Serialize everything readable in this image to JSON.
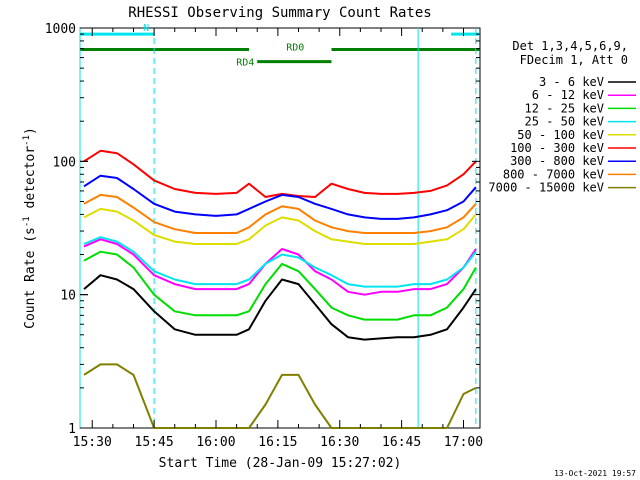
{
  "chart_data": {
    "type": "line",
    "title": "RHESSI Observing Summary Count Rates",
    "xlabel": "Start Time (28-Jan-09 15:27:02)",
    "ylabel": "Count Rate (s⁻¹ detector⁻¹)",
    "ylabel_parts": [
      "Count Rate (s",
      "-1",
      " detector",
      "-1",
      ")"
    ],
    "y_scale": "log",
    "ylim": [
      1,
      1000
    ],
    "y_ticks": [
      1,
      10,
      100,
      1000
    ],
    "y_tick_labels": [
      "1",
      "10",
      "100",
      "1000"
    ],
    "xlim": [
      "15:27:02",
      "17:04:00"
    ],
    "x_ticks": [
      "15:30",
      "15:45",
      "16:00",
      "16:15",
      "16:30",
      "16:45",
      "17:00"
    ],
    "legend_header": [
      "Det 1,3,4,5,6,9,",
      "FDecim 1, Att 0"
    ],
    "legend_placement": "right",
    "footer": "13-Oct-2021 19:57",
    "flags": [
      {
        "label": "N",
        "color": "#00e5ee",
        "segments": [
          [
            "15:27:02",
            "15:45:00"
          ],
          [
            "16:57:00",
            "17:04:00"
          ]
        ],
        "level": 900
      },
      {
        "label": "RD0",
        "color": "#007f00",
        "segments": [
          [
            "15:27:02",
            "16:08:00"
          ],
          [
            "16:28:00",
            "17:04:00"
          ]
        ],
        "level": 690
      },
      {
        "label": "RD4",
        "color": "#007f00",
        "segments": [
          [
            "16:10:00",
            "16:28:00"
          ]
        ],
        "level": 560
      }
    ],
    "markers": [
      {
        "time": "15:27:02",
        "style": "solid"
      },
      {
        "time": "15:45:00",
        "style": "dashed"
      },
      {
        "time": "16:49:00",
        "style": "solid"
      },
      {
        "time": "17:03:00",
        "style": "dashed"
      }
    ],
    "series": [
      {
        "name": "3 - 6 keV",
        "color": "#000000",
        "x": [
          "15:28",
          "15:32",
          "15:36",
          "15:40",
          "15:45",
          "15:50",
          "15:55",
          "16:00",
          "16:05",
          "16:08",
          "16:12",
          "16:16",
          "16:20",
          "16:24",
          "16:28",
          "16:32",
          "16:36",
          "16:40",
          "16:44",
          "16:48",
          "16:52",
          "16:56",
          "17:00",
          "17:03"
        ],
        "values": [
          11,
          14,
          13,
          11,
          7.5,
          5.5,
          5,
          5,
          5,
          5.5,
          9,
          13,
          12,
          8.5,
          6,
          4.8,
          4.6,
          4.7,
          4.8,
          4.8,
          5,
          5.5,
          8,
          11
        ]
      },
      {
        "name": "6 - 12 keV",
        "color": "#ff00ff",
        "x": [
          "15:28",
          "15:32",
          "15:36",
          "15:40",
          "15:45",
          "15:50",
          "15:55",
          "16:00",
          "16:05",
          "16:08",
          "16:12",
          "16:16",
          "16:20",
          "16:24",
          "16:28",
          "16:32",
          "16:36",
          "16:40",
          "16:44",
          "16:48",
          "16:52",
          "16:56",
          "17:00",
          "17:03"
        ],
        "values": [
          23,
          26,
          24,
          20,
          14,
          12,
          11,
          11,
          11,
          12,
          17,
          22,
          20,
          15,
          13,
          10.5,
          10,
          10.5,
          10.5,
          11,
          11,
          12,
          16,
          22
        ]
      },
      {
        "name": "12 - 25 keV",
        "color": "#00dd00",
        "x": [
          "15:28",
          "15:32",
          "15:36",
          "15:40",
          "15:45",
          "15:50",
          "15:55",
          "16:00",
          "16:05",
          "16:08",
          "16:12",
          "16:16",
          "16:20",
          "16:24",
          "16:28",
          "16:32",
          "16:36",
          "16:40",
          "16:44",
          "16:48",
          "16:52",
          "16:56",
          "17:00",
          "17:03"
        ],
        "values": [
          18,
          21,
          20,
          16,
          10,
          7.5,
          7,
          7,
          7,
          7.5,
          12,
          17,
          15,
          11,
          8,
          7,
          6.5,
          6.5,
          6.5,
          7,
          7,
          8,
          11,
          16
        ]
      },
      {
        "name": "25 - 50 keV",
        "color": "#00e5ee",
        "x": [
          "15:28",
          "15:32",
          "15:36",
          "15:40",
          "15:45",
          "15:50",
          "15:55",
          "16:00",
          "16:05",
          "16:08",
          "16:12",
          "16:16",
          "16:20",
          "16:24",
          "16:28",
          "16:32",
          "16:36",
          "16:40",
          "16:44",
          "16:48",
          "16:52",
          "16:56",
          "17:00",
          "17:03"
        ],
        "values": [
          24,
          27,
          25,
          21,
          15,
          13,
          12,
          12,
          12,
          13,
          17,
          20,
          19,
          16,
          14,
          12,
          11.5,
          11.5,
          11.5,
          12,
          12,
          13,
          16,
          21
        ]
      },
      {
        "name": "50 - 100 keV",
        "color": "#dddd00",
        "x": [
          "15:28",
          "15:32",
          "15:36",
          "15:40",
          "15:45",
          "15:50",
          "15:55",
          "16:00",
          "16:05",
          "16:08",
          "16:12",
          "16:16",
          "16:20",
          "16:24",
          "16:28",
          "16:32",
          "16:36",
          "16:40",
          "16:44",
          "16:48",
          "16:52",
          "16:56",
          "17:00",
          "17:03"
        ],
        "values": [
          38,
          44,
          42,
          36,
          28,
          25,
          24,
          24,
          24,
          26,
          33,
          38,
          36,
          30,
          26,
          25,
          24,
          24,
          24,
          24,
          25,
          26,
          31,
          40
        ]
      },
      {
        "name": "100 - 300 keV",
        "color": "#ff0000",
        "x": [
          "15:28",
          "15:32",
          "15:36",
          "15:40",
          "15:45",
          "15:50",
          "15:55",
          "16:00",
          "16:05",
          "16:08",
          "16:12",
          "16:16",
          "16:20",
          "16:24",
          "16:28",
          "16:32",
          "16:36",
          "16:40",
          "16:44",
          "16:48",
          "16:52",
          "16:56",
          "17:00",
          "17:03"
        ],
        "values": [
          100,
          120,
          115,
          95,
          72,
          62,
          58,
          57,
          58,
          68,
          54,
          57,
          55,
          54,
          68,
          62,
          58,
          57,
          57,
          58,
          60,
          66,
          80,
          100
        ]
      },
      {
        "name": "300 - 800 keV",
        "color": "#0000ff",
        "x": [
          "15:28",
          "15:32",
          "15:36",
          "15:40",
          "15:45",
          "15:50",
          "15:55",
          "16:00",
          "16:05",
          "16:08",
          "16:12",
          "16:16",
          "16:20",
          "16:24",
          "16:28",
          "16:32",
          "16:36",
          "16:40",
          "16:44",
          "16:48",
          "16:52",
          "16:56",
          "17:00",
          "17:03"
        ],
        "values": [
          65,
          78,
          75,
          62,
          48,
          42,
          40,
          39,
          40,
          44,
          50,
          56,
          54,
          48,
          44,
          40,
          38,
          37,
          37,
          38,
          40,
          43,
          50,
          64
        ]
      },
      {
        "name": "800 - 7000 keV",
        "color": "#ff8000",
        "x": [
          "15:28",
          "15:32",
          "15:36",
          "15:40",
          "15:45",
          "15:50",
          "15:55",
          "16:00",
          "16:05",
          "16:08",
          "16:12",
          "16:16",
          "16:20",
          "16:24",
          "16:28",
          "16:32",
          "16:36",
          "16:40",
          "16:44",
          "16:48",
          "16:52",
          "16:56",
          "17:00",
          "17:03"
        ],
        "values": [
          48,
          56,
          54,
          45,
          35,
          31,
          29,
          29,
          29,
          32,
          40,
          46,
          44,
          36,
          32,
          30,
          29,
          29,
          29,
          29,
          30,
          32,
          38,
          48
        ]
      },
      {
        "name": "7000 - 15000 keV",
        "color": "#808000",
        "x": [
          "15:28",
          "15:32",
          "15:36",
          "15:40",
          "15:45",
          "15:50",
          "15:55",
          "16:00",
          "16:05",
          "16:08",
          "16:12",
          "16:16",
          "16:20",
          "16:24",
          "16:28",
          "16:32",
          "16:36",
          "16:40",
          "16:44",
          "16:48",
          "16:52",
          "16:56",
          "17:00",
          "17:03"
        ],
        "values": [
          2.5,
          3,
          3,
          2.5,
          1,
          1,
          1,
          1,
          1,
          1,
          1.5,
          2.5,
          2.5,
          1.5,
          1,
          1,
          1,
          1,
          1,
          1,
          1,
          1,
          1.8,
          2
        ]
      }
    ]
  }
}
